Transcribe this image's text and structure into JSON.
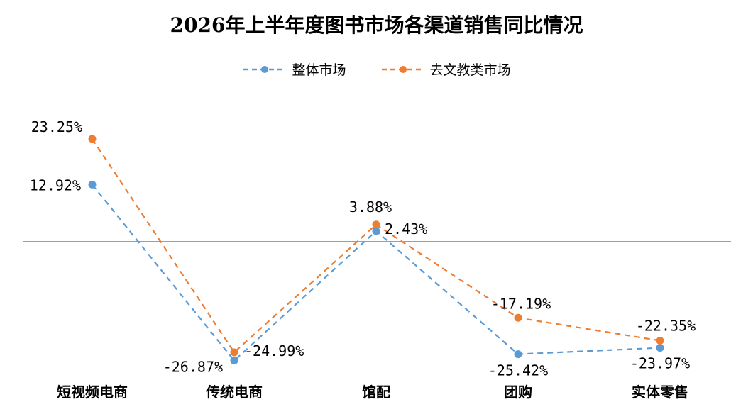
{
  "chart_data": {
    "type": "line",
    "title": "2026年上半年度图书市场各渠道销售同比情况",
    "categories": [
      "短视频电商",
      "传统电商",
      "馆配",
      "团购",
      "实体零售"
    ],
    "series": [
      {
        "name": "整体市场",
        "values": [
          12.92,
          -26.87,
          2.43,
          -25.42,
          -23.97
        ],
        "labels": [
          "12.92%",
          "-26.87%",
          "2.43%",
          "-25.42%",
          "-23.97%"
        ],
        "color": "#5b9bd5"
      },
      {
        "name": "去文教类市场",
        "values": [
          23.25,
          -24.99,
          3.88,
          -17.19,
          -22.35
        ],
        "labels": [
          "23.25%",
          "-24.99%",
          "3.88%",
          "-17.19%",
          "-22.35%"
        ],
        "color": "#ed7d31"
      }
    ],
    "line_style": "dashed",
    "marker": "circle",
    "legend_position": "top",
    "grid": false,
    "xlabel": "",
    "ylabel": ""
  }
}
